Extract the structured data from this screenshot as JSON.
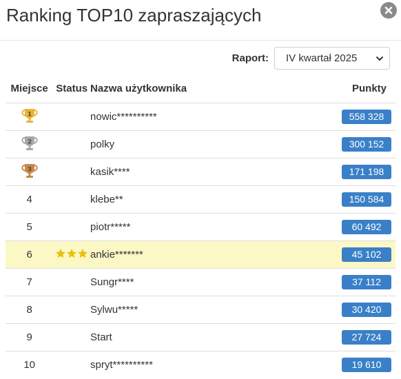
{
  "header": {
    "title": "Ranking TOP10 zapraszających"
  },
  "report": {
    "label": "Raport:",
    "selected": "IV kwartał 2025"
  },
  "table": {
    "columns": {
      "place": "Miejsce",
      "status": "Status",
      "user": "Nazwa użytkownika",
      "points": "Punkty"
    },
    "rows": [
      {
        "place": "1",
        "user": "nowic**********",
        "points": "558 328",
        "trophy": "gold"
      },
      {
        "place": "2",
        "user": "polky",
        "points": "300 152",
        "trophy": "silver"
      },
      {
        "place": "3",
        "user": "kasik****",
        "points": "171 198",
        "trophy": "bronze"
      },
      {
        "place": "4",
        "user": "klebe**",
        "points": "150 584"
      },
      {
        "place": "5",
        "user": "piotr*****",
        "points": "60 492"
      },
      {
        "place": "6",
        "user": "ankie*******",
        "points": "45 102",
        "status_stars": 3,
        "highlighted": true
      },
      {
        "place": "7",
        "user": "Sungr****",
        "points": "37 112"
      },
      {
        "place": "8",
        "user": "Sylwu*****",
        "points": "30 420"
      },
      {
        "place": "9",
        "user": "Start",
        "points": "27 724"
      },
      {
        "place": "10",
        "user": "spryt**********",
        "points": "19 610"
      }
    ]
  },
  "colors": {
    "badge": "#3a80c8",
    "highlight_row": "#fcf8c6",
    "trophy_gold": "#e8b43c",
    "trophy_silver": "#a3a8ad",
    "trophy_bronze": "#c9874a",
    "star": "#e8c20e"
  }
}
